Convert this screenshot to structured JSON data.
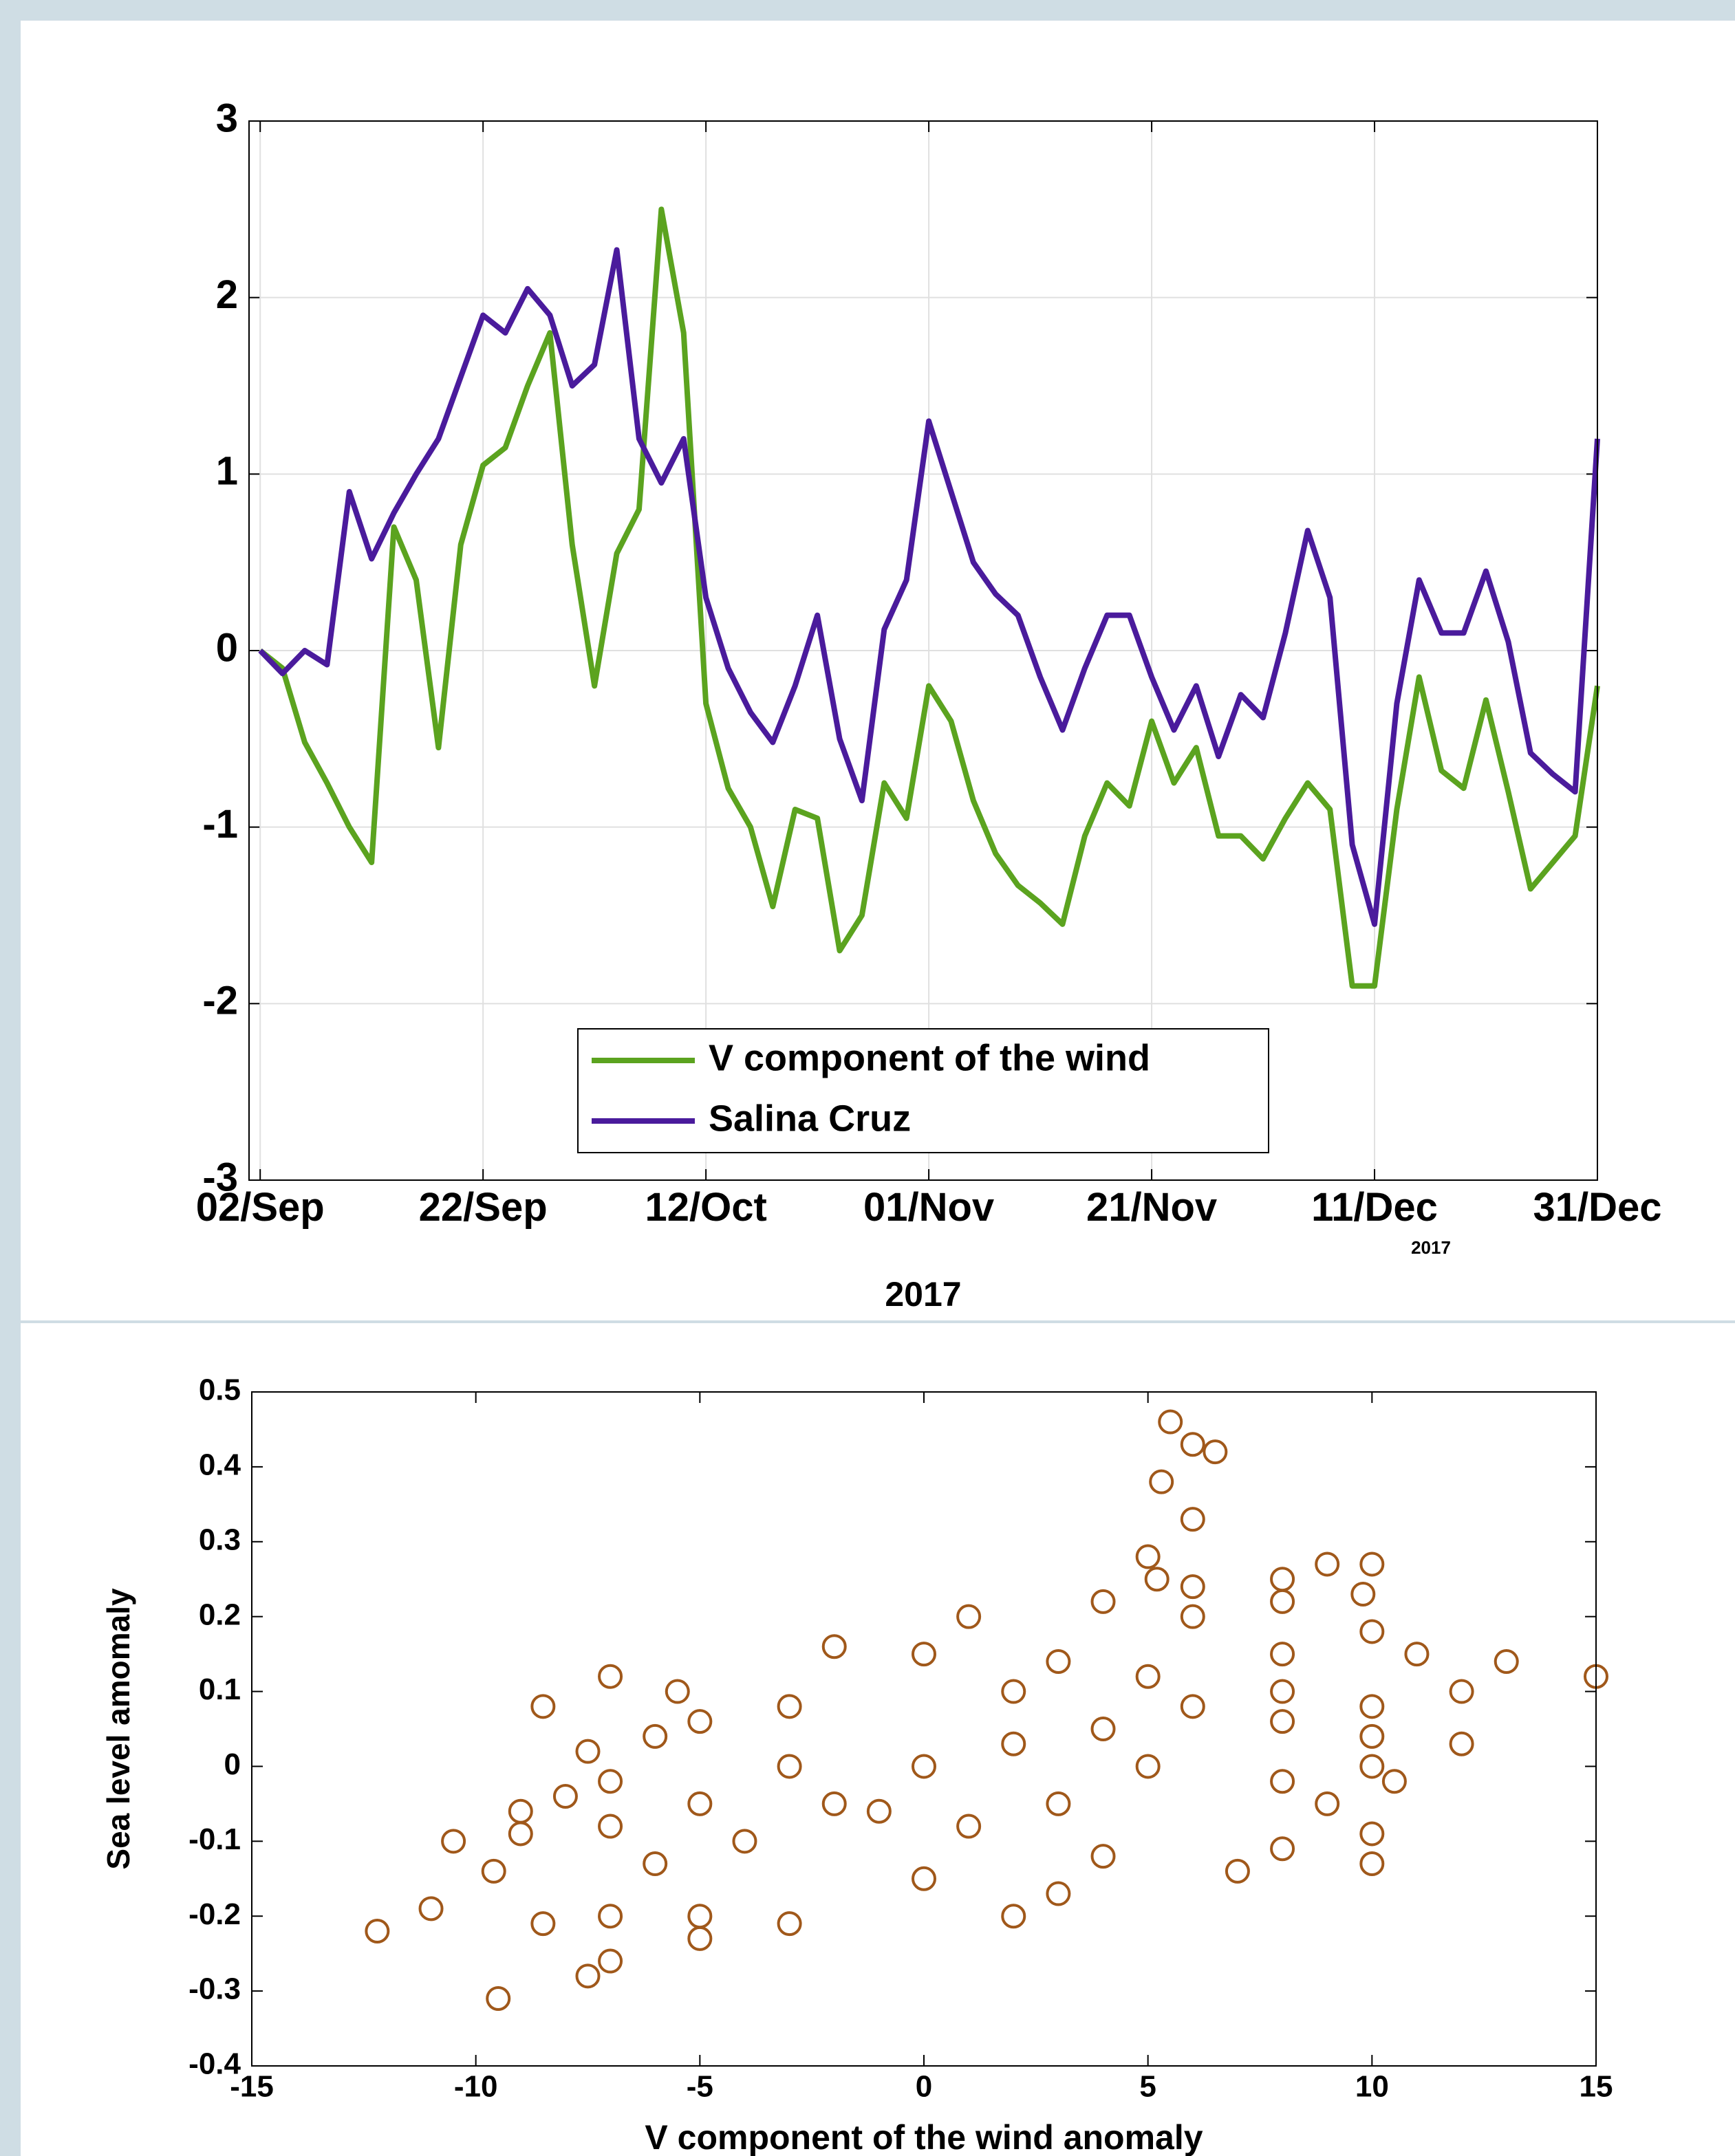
{
  "chart_data": [
    {
      "type": "line",
      "xlabel": "2017",
      "annotation": "2017",
      "x": [
        "2017-09-02",
        "2017-09-04",
        "2017-09-06",
        "2017-09-08",
        "2017-09-10",
        "2017-09-12",
        "2017-09-14",
        "2017-09-16",
        "2017-09-18",
        "2017-09-20",
        "2017-09-22",
        "2017-09-24",
        "2017-09-26",
        "2017-09-28",
        "2017-09-30",
        "2017-10-02",
        "2017-10-04",
        "2017-10-06",
        "2017-10-08",
        "2017-10-10",
        "2017-10-12",
        "2017-10-14",
        "2017-10-16",
        "2017-10-18",
        "2017-10-20",
        "2017-10-22",
        "2017-10-24",
        "2017-10-26",
        "2017-10-28",
        "2017-10-30",
        "2017-11-01",
        "2017-11-03",
        "2017-11-05",
        "2017-11-07",
        "2017-11-09",
        "2017-11-11",
        "2017-11-13",
        "2017-11-15",
        "2017-11-17",
        "2017-11-19",
        "2017-11-21",
        "2017-11-23",
        "2017-11-25",
        "2017-11-27",
        "2017-11-29",
        "2017-12-01",
        "2017-12-03",
        "2017-12-05",
        "2017-12-07",
        "2017-12-09",
        "2017-12-11",
        "2017-12-13",
        "2017-12-15",
        "2017-12-17",
        "2017-12-19",
        "2017-12-21",
        "2017-12-23",
        "2017-12-25",
        "2017-12-27",
        "2017-12-29",
        "2017-12-31"
      ],
      "series": [
        {
          "name": "V component of the wind",
          "color": "#5ba31f",
          "values": [
            0.0,
            -0.1,
            -0.52,
            -0.75,
            -1.0,
            -1.2,
            0.7,
            0.4,
            -0.55,
            0.6,
            1.05,
            1.15,
            1.5,
            1.8,
            0.6,
            -0.2,
            0.55,
            0.8,
            2.5,
            1.8,
            -0.3,
            -0.78,
            -1.0,
            -1.45,
            -0.9,
            -0.95,
            -1.7,
            -1.5,
            -0.75,
            -0.95,
            -0.2,
            -0.4,
            -0.85,
            -1.15,
            -1.33,
            -1.43,
            -1.55,
            -1.05,
            -0.75,
            -0.88,
            -0.4,
            -0.75,
            -0.55,
            -1.05,
            -1.05,
            -1.18,
            -0.95,
            -0.75,
            -0.9,
            -1.9,
            -1.9,
            -0.9,
            -0.15,
            -0.68,
            -0.78,
            -0.28,
            -0.8,
            -1.35,
            -1.2,
            -1.05,
            -0.2
          ]
        },
        {
          "name": "Salina Cruz",
          "color": "#4a1b9c",
          "values": [
            0.0,
            -0.13,
            0.0,
            -0.08,
            0.9,
            0.52,
            0.78,
            1.0,
            1.2,
            1.55,
            1.9,
            1.8,
            2.05,
            1.9,
            1.5,
            1.62,
            2.27,
            1.2,
            0.95,
            1.2,
            0.3,
            -0.1,
            -0.35,
            -0.52,
            -0.2,
            0.2,
            -0.5,
            -0.85,
            0.12,
            0.4,
            1.3,
            0.9,
            0.5,
            0.32,
            0.2,
            -0.15,
            -0.45,
            -0.1,
            0.2,
            0.2,
            -0.15,
            -0.45,
            -0.2,
            -0.6,
            -0.25,
            -0.38,
            0.1,
            0.68,
            0.3,
            -1.1,
            -1.55,
            -0.3,
            0.4,
            0.1,
            0.1,
            0.45,
            0.05,
            -0.58,
            -0.7,
            -0.8,
            1.2
          ]
        }
      ],
      "xlim": [
        "2017-09-01",
        "2017-12-31"
      ],
      "xticks": [
        {
          "value": "2017-09-02",
          "label": "02/Sep"
        },
        {
          "value": "2017-09-22",
          "label": "22/Sep"
        },
        {
          "value": "2017-10-12",
          "label": "12/Oct"
        },
        {
          "value": "2017-11-01",
          "label": "01/Nov"
        },
        {
          "value": "2017-11-21",
          "label": "21/Nov"
        },
        {
          "value": "2017-12-11",
          "label": "11/Dec"
        },
        {
          "value": "2017-12-31",
          "label": "31/Dec"
        }
      ],
      "ylim": [
        -3,
        3
      ],
      "yticks": [
        -3,
        -2,
        -1,
        0,
        1,
        2,
        3
      ],
      "grid": true,
      "legend": "lower center"
    },
    {
      "type": "scatter",
      "xlabel": "V component of the wind anomaly",
      "ylabel": "Sea level amomaly",
      "series": [
        {
          "color": "#a0581a",
          "x": [
            -12.2,
            -11,
            -9.6,
            -10.5,
            -9,
            -8,
            -7,
            -8.5,
            -7,
            -5.5,
            -6,
            -7.5,
            -5,
            -3,
            -2,
            0,
            2,
            1,
            4,
            5,
            6,
            6.5,
            5.5,
            6,
            5.3,
            5.2,
            6,
            8,
            9,
            10,
            9.8,
            8,
            6,
            3,
            5,
            8,
            10,
            11,
            13,
            15,
            12,
            10,
            8,
            10,
            12,
            10,
            8,
            10.5,
            9,
            10,
            8,
            10,
            7,
            4,
            3,
            2,
            0,
            -3,
            -5,
            -7,
            -9.5,
            -7.5,
            -5,
            -7,
            -8.5,
            -6,
            -4,
            -2,
            0,
            2,
            4,
            6,
            8,
            5,
            3,
            1,
            -1,
            -3,
            -5,
            -7,
            -9
          ],
          "values": [
            -0.22,
            -0.19,
            -0.14,
            -0.1,
            -0.06,
            -0.04,
            -0.02,
            0.08,
            0.12,
            0.1,
            0.04,
            0.02,
            0.06,
            0.08,
            0.16,
            0.15,
            0.1,
            0.2,
            0.22,
            0.28,
            0.33,
            0.42,
            0.46,
            0.43,
            0.38,
            0.25,
            0.24,
            0.25,
            0.27,
            0.27,
            0.23,
            0.22,
            0.2,
            0.14,
            0.12,
            0.15,
            0.18,
            0.15,
            0.14,
            0.12,
            0.1,
            0.08,
            0.06,
            0.04,
            0.03,
            0.0,
            -0.02,
            -0.02,
            -0.05,
            -0.09,
            -0.11,
            -0.13,
            -0.14,
            -0.12,
            -0.17,
            -0.2,
            -0.15,
            -0.21,
            -0.2,
            -0.26,
            -0.31,
            -0.28,
            -0.23,
            -0.2,
            -0.21,
            -0.13,
            -0.1,
            -0.05,
            0.0,
            0.03,
            0.05,
            0.08,
            0.1,
            0.0,
            -0.05,
            -0.08,
            -0.06,
            0.0,
            -0.05,
            -0.08,
            -0.09
          ]
        }
      ],
      "xlim": [
        -15,
        15
      ],
      "xticks": [
        -15,
        -10,
        -5,
        0,
        5,
        10,
        15
      ],
      "ylim": [
        -0.4,
        0.5
      ],
      "yticks": [
        -0.4,
        -0.3,
        -0.2,
        -0.1,
        0,
        0.1,
        0.2,
        0.3,
        0.4,
        0.5
      ],
      "grid": false
    }
  ]
}
